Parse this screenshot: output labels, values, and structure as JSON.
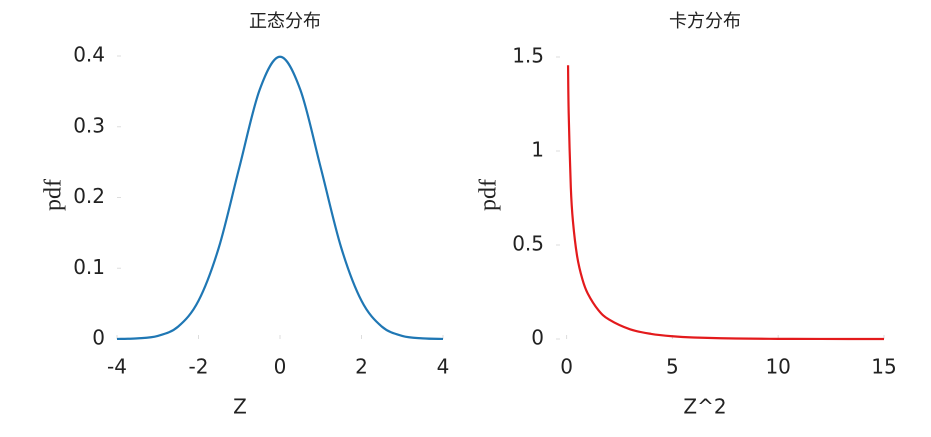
{
  "chart_data": [
    {
      "type": "line",
      "title": "正态分布",
      "xlabel": "Z",
      "ylabel": "pdf",
      "x": [
        -4,
        -3.5,
        -3,
        -2.5,
        -2,
        -1.5,
        -1,
        -0.5,
        0,
        0.5,
        1,
        1.5,
        2,
        2.5,
        3,
        3.5,
        4
      ],
      "series": [
        {
          "color": "#1f77b4",
          "values": [
            0.0001,
            0.0009,
            0.0044,
            0.0175,
            0.054,
            0.1295,
            0.242,
            0.3521,
            0.3989,
            0.3521,
            0.242,
            0.1295,
            0.054,
            0.0175,
            0.0044,
            0.0009,
            0.0001
          ]
        }
      ],
      "xlim": [
        -4,
        4
      ],
      "xticks": [
        -4,
        -2,
        0,
        2,
        4
      ],
      "ylim": [
        0,
        0.4
      ],
      "yticks": [
        0,
        0.1,
        0.2,
        0.3,
        0.4
      ]
    },
    {
      "type": "line",
      "title": "卡方分布",
      "xlabel": "Z^2",
      "ylabel": "pdf",
      "x": [
        0.07,
        0.1,
        0.2,
        0.3,
        0.5,
        0.75,
        1,
        1.5,
        2,
        3,
        4,
        5,
        6,
        8,
        10,
        12,
        15
      ],
      "series": [
        {
          "color": "#e31a1c",
          "values": [
            1.456,
            1.2,
            0.8072,
            0.6269,
            0.4394,
            0.3166,
            0.242,
            0.1539,
            0.1038,
            0.0514,
            0.027,
            0.0146,
            0.0081,
            0.0026,
            0.00085,
            0.00029,
            6e-05
          ]
        }
      ],
      "xlim": [
        -0.5,
        15
      ],
      "xticks": [
        0,
        5,
        10,
        15
      ],
      "ylim": [
        0,
        1.5
      ],
      "yticks": [
        0,
        0.5,
        1,
        1.5
      ]
    }
  ]
}
